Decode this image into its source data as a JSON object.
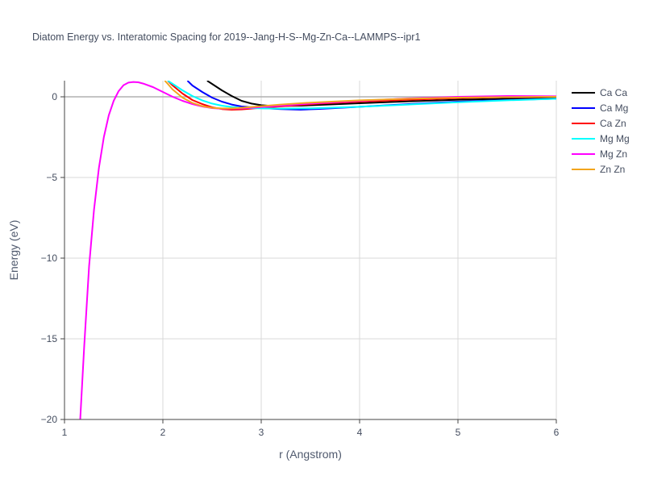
{
  "chart_data": {
    "type": "line",
    "title": "Diatom Energy vs. Interatomic Spacing for 2019--Jang-H-S--Mg-Zn-Ca--LAMMPS--ipr1",
    "xlabel": "r (Angstrom)",
    "ylabel": "Energy (eV)",
    "xlim": [
      1,
      6
    ],
    "ylim": [
      -20,
      1
    ],
    "x_ticks": [
      1,
      2,
      3,
      4,
      5,
      6
    ],
    "y_ticks": [
      0,
      -5,
      -10,
      -15,
      -20
    ],
    "y_tick_labels": [
      "0",
      "−5",
      "−10",
      "−15",
      "−20"
    ],
    "grid": true,
    "legend_position": "right",
    "series": [
      {
        "name": "Ca Ca",
        "color": "#000000",
        "x": [
          2.45,
          2.5,
          2.6,
          2.7,
          2.8,
          2.9,
          3.0,
          3.1,
          3.2,
          3.4,
          3.6,
          4.0,
          4.5,
          5.0,
          5.5,
          6.0
        ],
        "y": [
          1.0,
          0.8,
          0.4,
          0.05,
          -0.25,
          -0.42,
          -0.52,
          -0.56,
          -0.57,
          -0.55,
          -0.5,
          -0.4,
          -0.28,
          -0.18,
          -0.12,
          -0.08
        ]
      },
      {
        "name": "Ca Mg",
        "color": "#0000ff",
        "x": [
          2.25,
          2.3,
          2.4,
          2.5,
          2.6,
          2.7,
          2.8,
          3.0,
          3.2,
          3.4,
          3.6,
          4.0,
          4.5,
          5.0,
          5.5,
          6.0
        ],
        "y": [
          1.0,
          0.7,
          0.3,
          -0.05,
          -0.3,
          -0.48,
          -0.6,
          -0.7,
          -0.76,
          -0.8,
          -0.75,
          -0.62,
          -0.45,
          -0.3,
          -0.2,
          -0.12
        ]
      },
      {
        "name": "Ca Zn",
        "color": "#ff0000",
        "x": [
          2.05,
          2.1,
          2.2,
          2.3,
          2.4,
          2.5,
          2.6,
          2.7,
          2.8,
          3.0,
          3.3,
          3.6,
          4.0,
          4.5,
          5.0,
          5.5,
          6.0
        ],
        "y": [
          1.0,
          0.7,
          0.2,
          -0.2,
          -0.45,
          -0.65,
          -0.76,
          -0.8,
          -0.78,
          -0.68,
          -0.55,
          -0.42,
          -0.3,
          -0.18,
          -0.08,
          -0.02,
          0.0
        ]
      },
      {
        "name": "Mg Mg",
        "color": "#00ffff",
        "x": [
          2.05,
          2.1,
          2.2,
          2.3,
          2.4,
          2.5,
          2.6,
          2.7,
          2.8,
          3.0,
          3.2,
          3.5,
          4.0,
          4.5,
          5.0,
          5.5,
          6.0
        ],
        "y": [
          1.0,
          0.8,
          0.4,
          0.05,
          -0.22,
          -0.42,
          -0.55,
          -0.63,
          -0.68,
          -0.72,
          -0.73,
          -0.72,
          -0.62,
          -0.48,
          -0.34,
          -0.22,
          -0.12
        ]
      },
      {
        "name": "Mg Zn",
        "color": "#ff00ff",
        "x": [
          1.16,
          1.2,
          1.25,
          1.3,
          1.35,
          1.4,
          1.45,
          1.5,
          1.55,
          1.6,
          1.65,
          1.7,
          1.75,
          1.8,
          1.9,
          2.0,
          2.1,
          2.2,
          2.3,
          2.4,
          2.5,
          2.6,
          2.7,
          2.8,
          3.0,
          3.2,
          3.5,
          4.0,
          4.5,
          5.0,
          5.5,
          6.0
        ],
        "y": [
          -20.0,
          -15.5,
          -10.5,
          -7.0,
          -4.4,
          -2.5,
          -1.15,
          -0.25,
          0.35,
          0.72,
          0.88,
          0.92,
          0.9,
          0.82,
          0.6,
          0.3,
          0.0,
          -0.25,
          -0.45,
          -0.6,
          -0.7,
          -0.74,
          -0.74,
          -0.72,
          -0.64,
          -0.55,
          -0.42,
          -0.25,
          -0.1,
          0.0,
          0.05,
          0.03
        ]
      },
      {
        "name": "Zn Zn",
        "color": "#f2a51c",
        "x": [
          2.02,
          2.05,
          2.1,
          2.2,
          2.3,
          2.4,
          2.5,
          2.6,
          2.7,
          2.8,
          3.0,
          3.2,
          3.5,
          4.0,
          4.5,
          5.0,
          5.5,
          6.0
        ],
        "y": [
          1.0,
          0.8,
          0.45,
          -0.05,
          -0.38,
          -0.58,
          -0.68,
          -0.72,
          -0.72,
          -0.68,
          -0.58,
          -0.48,
          -0.36,
          -0.22,
          -0.12,
          -0.05,
          -0.02,
          0.0
        ]
      }
    ]
  }
}
